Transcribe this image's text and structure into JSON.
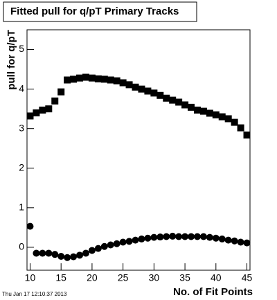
{
  "chart_data": {
    "type": "scatter",
    "title": "Fitted pull for q/pT Primary Tracks",
    "x_label": "No. of Fit Points",
    "y_label": "pull for q/pT",
    "timestamp": "Thu Jan 17 12:10:37 2013",
    "x": [
      10,
      11,
      12,
      13,
      14,
      15,
      16,
      17,
      18,
      19,
      20,
      21,
      22,
      23,
      24,
      25,
      26,
      27,
      28,
      29,
      30,
      31,
      32,
      33,
      34,
      35,
      36,
      37,
      38,
      39,
      40,
      41,
      42,
      43,
      44,
      45
    ],
    "series": [
      {
        "marker": "square",
        "color": "#000000",
        "values": [
          3.32,
          3.4,
          3.47,
          3.5,
          3.7,
          3.93,
          4.23,
          4.25,
          4.28,
          4.3,
          4.28,
          4.26,
          4.25,
          4.23,
          4.21,
          4.16,
          4.11,
          4.05,
          4.0,
          3.95,
          3.9,
          3.84,
          3.77,
          3.72,
          3.67,
          3.6,
          3.54,
          3.47,
          3.44,
          3.39,
          3.35,
          3.3,
          3.25,
          3.16,
          3.02,
          2.84
        ]
      },
      {
        "marker": "circle",
        "color": "#000000",
        "values": [
          0.53,
          -0.15,
          -0.15,
          -0.15,
          -0.18,
          -0.23,
          -0.26,
          -0.24,
          -0.2,
          -0.15,
          -0.08,
          -0.03,
          0.02,
          0.06,
          0.09,
          0.13,
          0.15,
          0.18,
          0.21,
          0.23,
          0.25,
          0.26,
          0.27,
          0.28,
          0.27,
          0.27,
          0.27,
          0.27,
          0.27,
          0.25,
          0.23,
          0.21,
          0.18,
          0.16,
          0.13,
          0.11
        ]
      }
    ],
    "xlim": [
      9.5,
      45.5
    ],
    "ylim": [
      -0.58,
      5.5
    ],
    "xticks": [
      10,
      15,
      20,
      25,
      30,
      35,
      40,
      45
    ],
    "yticks": [
      0,
      1,
      2,
      3,
      4,
      5
    ]
  }
}
